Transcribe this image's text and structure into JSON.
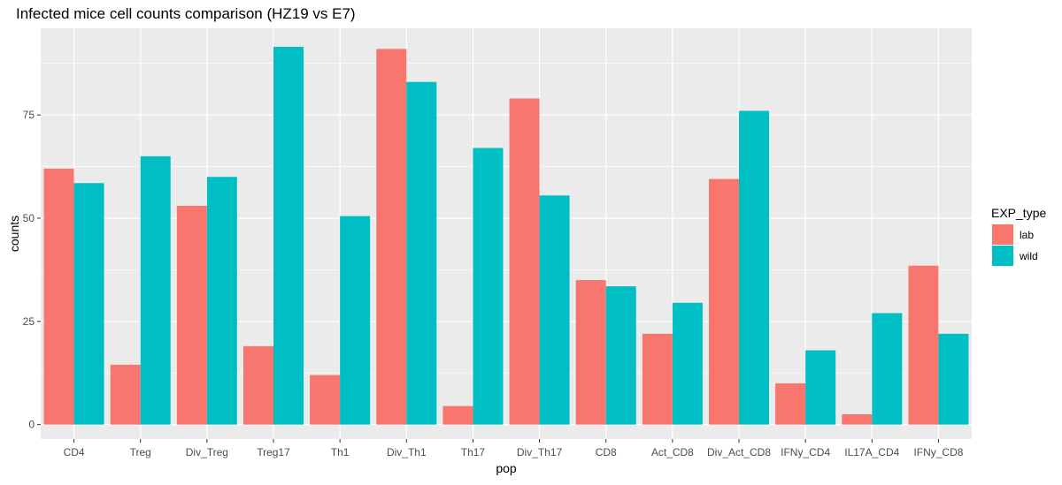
{
  "chart_data": {
    "type": "bar",
    "title": "Infected mice cell counts comparison (HZ19 vs E7)",
    "xlabel": "pop",
    "ylabel": "counts",
    "categories": [
      "CD4",
      "Treg",
      "Div_Treg",
      "Treg17",
      "Th1",
      "Div_Th1",
      "Th17",
      "Div_Th17",
      "CD8",
      "Act_CD8",
      "Div_Act_CD8",
      "IFNy_CD4",
      "IL17A_CD4",
      "IFNy_CD8"
    ],
    "series": [
      {
        "name": "lab",
        "color": "#F8766D",
        "values": [
          62,
          14.5,
          53,
          19,
          12,
          91,
          4.5,
          79,
          35,
          22,
          59.5,
          10,
          2.5,
          38.5
        ]
      },
      {
        "name": "wild",
        "color": "#00BFC4",
        "values": [
          58.5,
          65,
          60,
          91.5,
          50.5,
          83,
          67,
          55.5,
          33.5,
          29.5,
          76,
          18,
          27,
          22
        ]
      }
    ],
    "yticks": [
      0,
      25,
      50,
      75
    ],
    "ylim": [
      -3.5,
      96
    ],
    "legend": {
      "title": "EXP_type",
      "position": "right"
    },
    "grid": true,
    "panel_background": "#EBEBEB",
    "grid_color": "#FFFFFF"
  }
}
